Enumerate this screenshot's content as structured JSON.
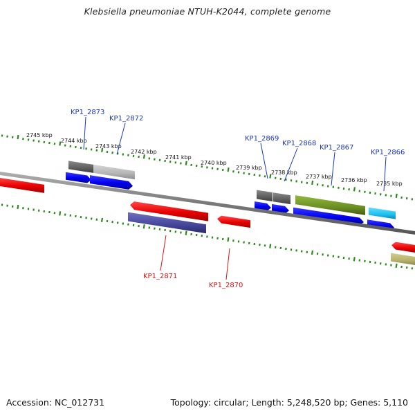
{
  "title": "Klebsiella pneumoniae NTUH-K2044, complete genome",
  "footer": {
    "accession": "Accession: NC_012731",
    "summary": "Topology: circular; Length: 5,248,520 bp; Genes: 5,110"
  },
  "scale_labels": [
    "2745 kbp",
    "2744 kbp",
    "2743 kbp",
    "2742 kbp",
    "2741 kbp",
    "2740 kbp",
    "2739 kbp",
    "2738 kbp",
    "2737 kbp",
    "2736 kbp",
    "2735 kbp"
  ],
  "genes": [
    {
      "id": "KP1_2873",
      "strand": "forward",
      "color": "#1a33cc"
    },
    {
      "id": "KP1_2872",
      "strand": "forward",
      "color": "#1a33cc"
    },
    {
      "id": "KP1_2869",
      "strand": "forward",
      "color": "#1a33cc"
    },
    {
      "id": "KP1_2868",
      "strand": "forward",
      "color": "#1a33cc"
    },
    {
      "id": "KP1_2867",
      "strand": "forward",
      "color": "#1a33cc"
    },
    {
      "id": "KP1_2866",
      "strand": "forward",
      "color": "#1a33cc"
    },
    {
      "id": "KP1_2871",
      "strand": "reverse",
      "color": "#dd1111"
    },
    {
      "id": "KP1_2870",
      "strand": "reverse",
      "color": "#dd1111"
    }
  ],
  "colors": {
    "backbone": "#808080",
    "forward_cds": "#1414e6",
    "reverse_cds": "#e60f0f",
    "tick": "#2a8a1a",
    "gray_feature": "#707070",
    "light_gray_feature": "#b8b8b8",
    "olive_feature": "#6b8f22",
    "cyan_feature": "#22c4ee",
    "purple_feature": "#4a4aa0",
    "khaki_feature": "#b5b06a"
  }
}
